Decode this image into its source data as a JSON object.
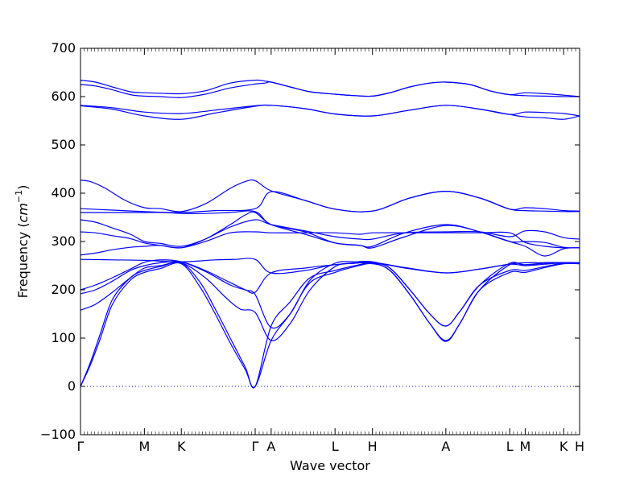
{
  "chart_data": {
    "type": "line",
    "xlabel": "Wave vector",
    "ylabel_prefix": "Frequency (",
    "ylabel_unit": "cm",
    "ylabel_exp": "−1",
    "ylabel_suffix": ")",
    "ylim": [
      -100,
      700
    ],
    "yticks": [
      -100,
      0,
      100,
      200,
      300,
      400,
      500,
      600,
      700
    ],
    "x_tick_labels": [
      {
        "label": "Γ",
        "x": 0.0
      },
      {
        "label": "M",
        "x": 0.128
      },
      {
        "label": "K",
        "x": 0.202
      },
      {
        "label": "Γ",
        "x": 0.35
      },
      {
        "label": "A",
        "x": 0.382
      },
      {
        "label": "L",
        "x": 0.51
      },
      {
        "label": "H",
        "x": 0.585
      },
      {
        "label": "A",
        "x": 0.732
      },
      {
        "label": "L",
        "x": 0.86
      },
      {
        "label": "M",
        "x": 0.891
      },
      {
        "label": "K",
        "x": 0.968
      },
      {
        "label": "H",
        "x": 1.0
      }
    ],
    "zero_line": {
      "y": 0,
      "style": "dotted"
    },
    "line_color": "#0000ff",
    "series": [
      {
        "x": [
          0,
          0.03,
          0.064,
          0.1,
          0.128,
          0.16,
          0.202,
          0.25,
          0.3,
          0.35,
          0.37,
          0.382,
          0.42,
          0.46,
          0.51,
          0.55,
          0.585,
          0.62,
          0.66,
          0.7,
          0.732,
          0.78,
          0.82,
          0.86,
          0.891,
          0.93,
          0.968,
          1.0
        ],
        "values": [
          634,
          630,
          620,
          610,
          608,
          607,
          606,
          612,
          628,
          634,
          632,
          630,
          620,
          610,
          605,
          602,
          601,
          608,
          620,
          628,
          630,
          625,
          612,
          604,
          608,
          606,
          603,
          600
        ]
      },
      {
        "x": [
          0,
          0.03,
          0.064,
          0.1,
          0.128,
          0.16,
          0.202,
          0.25,
          0.3,
          0.35,
          0.37,
          0.382,
          0.42,
          0.46,
          0.51,
          0.55,
          0.585,
          0.62,
          0.66,
          0.7,
          0.732,
          0.78,
          0.82,
          0.86,
          0.891,
          0.93,
          0.968,
          1.0
        ],
        "values": [
          625,
          622,
          614,
          604,
          601,
          600,
          598,
          605,
          618,
          626,
          628,
          630,
          620,
          610,
          605,
          602,
          601,
          608,
          620,
          628,
          630,
          625,
          612,
          604,
          602,
          601,
          600,
          600
        ]
      },
      {
        "x": [
          0,
          0.064,
          0.128,
          0.202,
          0.27,
          0.35,
          0.382,
          0.45,
          0.51,
          0.585,
          0.66,
          0.732,
          0.8,
          0.86,
          0.891,
          0.93,
          0.968,
          1.0
        ],
        "values": [
          582,
          577,
          568,
          565,
          572,
          581,
          582,
          575,
          564,
          560,
          572,
          582,
          574,
          563,
          568,
          567,
          565,
          560
        ]
      },
      {
        "x": [
          0,
          0.064,
          0.128,
          0.202,
          0.27,
          0.35,
          0.382,
          0.45,
          0.51,
          0.585,
          0.66,
          0.732,
          0.8,
          0.86,
          0.891,
          0.93,
          0.968,
          1.0
        ],
        "values": [
          581,
          574,
          560,
          553,
          566,
          580,
          582,
          575,
          564,
          560,
          572,
          582,
          574,
          563,
          558,
          556,
          553,
          560
        ]
      },
      {
        "x": [
          0,
          0.02,
          0.05,
          0.09,
          0.128,
          0.16,
          0.202,
          0.25,
          0.3,
          0.33,
          0.35,
          0.382,
          0.45,
          0.51,
          0.585,
          0.66,
          0.732,
          0.8,
          0.86,
          0.891,
          0.93,
          0.968,
          1.0
        ],
        "values": [
          427,
          424,
          410,
          385,
          370,
          368,
          362,
          378,
          410,
          424,
          426,
          405,
          385,
          367,
          363,
          390,
          404,
          390,
          367,
          370,
          368,
          364,
          363
        ]
      },
      {
        "x": [
          0,
          0.064,
          0.128,
          0.202,
          0.27,
          0.35,
          0.382,
          0.45,
          0.51,
          0.585,
          0.66,
          0.732,
          0.8,
          0.86,
          0.891,
          0.93,
          0.968,
          1.0
        ],
        "values": [
          368,
          365,
          362,
          360,
          364,
          368,
          403,
          385,
          367,
          363,
          390,
          404,
          390,
          367,
          364,
          363,
          362,
          362
        ]
      },
      {
        "x": [
          0,
          0.05,
          0.1,
          0.128,
          0.17,
          0.202,
          0.25,
          0.3,
          0.35,
          0.382,
          0.45,
          0.51,
          0.56,
          0.585,
          0.65,
          0.732,
          0.8,
          0.86,
          0.891,
          0.93,
          0.968,
          1.0
        ],
        "values": [
          360,
          360,
          360,
          360,
          360,
          358,
          358,
          360,
          362,
          335,
          320,
          297,
          292,
          290,
          318,
          335,
          320,
          300,
          300,
          298,
          288,
          287
        ]
      },
      {
        "x": [
          0,
          0.03,
          0.064,
          0.1,
          0.128,
          0.16,
          0.202,
          0.25,
          0.3,
          0.35,
          0.382,
          0.45,
          0.51,
          0.56,
          0.585,
          0.65,
          0.732,
          0.8,
          0.86,
          0.891,
          0.93,
          0.968,
          1.0
        ],
        "values": [
          345,
          340,
          328,
          315,
          300,
          296,
          290,
          305,
          330,
          345,
          335,
          322,
          310,
          305,
          305,
          318,
          320,
          320,
          310,
          322,
          320,
          308,
          305
        ]
      },
      {
        "x": [
          0,
          0.03,
          0.064,
          0.1,
          0.128,
          0.16,
          0.202,
          0.25,
          0.3,
          0.35,
          0.382,
          0.45,
          0.51,
          0.56,
          0.585,
          0.65,
          0.732,
          0.8,
          0.86,
          0.891,
          0.93,
          0.968,
          1.0
        ],
        "values": [
          320,
          318,
          312,
          306,
          297,
          292,
          287,
          300,
          318,
          320,
          318,
          318,
          318,
          315,
          318,
          318,
          318,
          318,
          318,
          298,
          290,
          287,
          287
        ]
      },
      {
        "x": [
          0,
          0.03,
          0.064,
          0.1,
          0.128,
          0.16,
          0.202,
          0.25,
          0.3,
          0.33,
          0.35,
          0.382,
          0.45,
          0.51,
          0.56,
          0.585,
          0.65,
          0.732,
          0.8,
          0.86,
          0.891,
          0.93,
          0.968,
          1.0
        ],
        "values": [
          272,
          276,
          283,
          288,
          290,
          292,
          287,
          305,
          335,
          355,
          360,
          335,
          315,
          297,
          292,
          287,
          310,
          333,
          320,
          300,
          290,
          270,
          285,
          287
        ]
      },
      {
        "x": [
          0,
          0.064,
          0.128,
          0.202,
          0.27,
          0.31,
          0.35,
          0.382,
          0.45,
          0.51,
          0.585,
          0.65,
          0.732,
          0.8,
          0.86,
          0.891,
          0.93,
          0.968,
          1.0
        ],
        "values": [
          263,
          262,
          261,
          258,
          262,
          263,
          263,
          235,
          240,
          252,
          256,
          246,
          235,
          243,
          253,
          256,
          256,
          256,
          256
        ]
      },
      {
        "x": [
          0,
          0.03,
          0.064,
          0.1,
          0.128,
          0.16,
          0.202,
          0.25,
          0.3,
          0.33,
          0.35,
          0.382,
          0.45,
          0.51,
          0.585,
          0.65,
          0.732,
          0.8,
          0.86,
          0.891,
          0.93,
          0.968,
          1.0
        ],
        "values": [
          200,
          210,
          225,
          243,
          257,
          262,
          258,
          238,
          210,
          200,
          195,
          235,
          245,
          252,
          256,
          245,
          235,
          243,
          253,
          250,
          253,
          256,
          256
        ]
      },
      {
        "x": [
          0,
          0.03,
          0.064,
          0.1,
          0.128,
          0.16,
          0.202,
          0.25,
          0.29,
          0.33,
          0.35,
          0.382,
          0.42,
          0.46,
          0.51,
          0.55,
          0.585,
          0.62,
          0.66,
          0.7,
          0.732,
          0.76,
          0.8,
          0.86,
          0.891,
          0.93,
          0.968,
          1.0
        ],
        "values": [
          192,
          200,
          218,
          240,
          250,
          256,
          258,
          240,
          220,
          200,
          190,
          122,
          150,
          220,
          255,
          258,
          258,
          245,
          200,
          150,
          125,
          155,
          210,
          255,
          250,
          256,
          256,
          255
        ]
      },
      {
        "x": [
          0,
          0.03,
          0.064,
          0.1,
          0.128,
          0.16,
          0.202,
          0.25,
          0.29,
          0.32,
          0.35,
          0.382,
          0.42,
          0.46,
          0.51,
          0.55,
          0.585,
          0.62,
          0.66,
          0.7,
          0.732,
          0.76,
          0.8,
          0.86,
          0.891,
          0.93,
          0.968,
          1.0
        ],
        "values": [
          158,
          170,
          195,
          225,
          245,
          250,
          256,
          225,
          185,
          160,
          153,
          95,
          130,
          200,
          248,
          255,
          256,
          240,
          190,
          130,
          93,
          130,
          200,
          252,
          252,
          255,
          256,
          255
        ]
      },
      {
        "x": [
          0,
          0.02,
          0.04,
          0.064,
          0.1,
          0.128,
          0.16,
          0.202,
          0.24,
          0.27,
          0.3,
          0.33,
          0.35,
          0.382,
          0.42,
          0.46,
          0.51,
          0.55,
          0.585,
          0.62,
          0.66,
          0.7,
          0.732,
          0.76,
          0.8,
          0.86,
          0.891,
          0.93,
          0.968,
          1.0
        ],
        "values": [
          0,
          50,
          110,
          180,
          225,
          240,
          248,
          256,
          215,
          160,
          100,
          40,
          0,
          125,
          175,
          225,
          240,
          250,
          256,
          245,
          200,
          150,
          125,
          155,
          210,
          240,
          240,
          248,
          255,
          255
        ]
      },
      {
        "x": [
          0,
          0.02,
          0.04,
          0.064,
          0.1,
          0.128,
          0.16,
          0.202,
          0.24,
          0.27,
          0.3,
          0.33,
          0.35,
          0.382,
          0.42,
          0.46,
          0.51,
          0.55,
          0.585,
          0.62,
          0.66,
          0.7,
          0.732,
          0.76,
          0.8,
          0.86,
          0.891,
          0.93,
          0.968,
          1.0
        ],
        "values": [
          0,
          45,
          100,
          170,
          220,
          236,
          244,
          254,
          205,
          150,
          90,
          35,
          0,
          95,
          150,
          215,
          236,
          248,
          254,
          240,
          190,
          130,
          95,
          130,
          200,
          236,
          236,
          246,
          254,
          254
        ]
      }
    ]
  }
}
